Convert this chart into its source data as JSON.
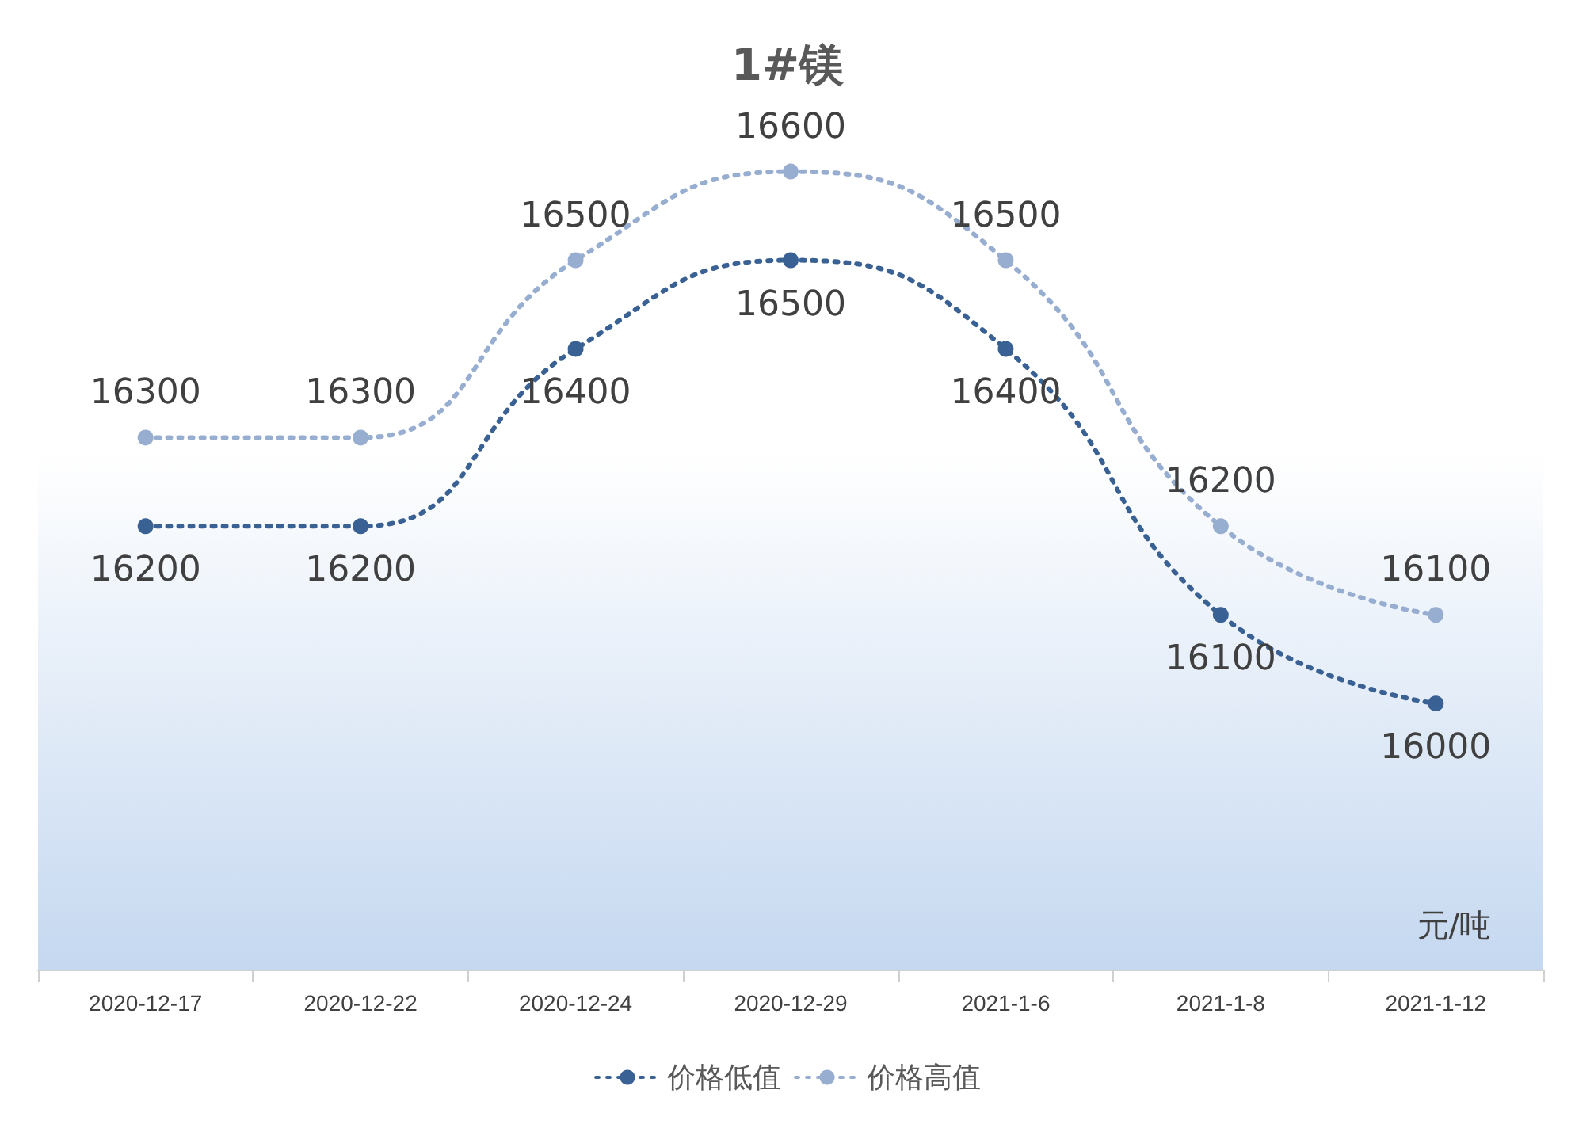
{
  "chart_data": {
    "type": "line",
    "title": "1#镁",
    "categories": [
      "2020-12-17",
      "2020-12-22",
      "2020-12-24",
      "2020-12-29",
      "2021-1-6",
      "2021-1-8",
      "2021-1-12"
    ],
    "series": [
      {
        "name": "价格低值",
        "color": "#3a6193",
        "values": [
          16200,
          16200,
          16400,
          16500,
          16400,
          16100,
          16000
        ]
      },
      {
        "name": "价格高值",
        "color": "#98aed0",
        "values": [
          16300,
          16300,
          16500,
          16600,
          16500,
          16200,
          16100
        ]
      }
    ],
    "annotations": [
      "元/吨"
    ],
    "data_labels": true,
    "legend": "bottom",
    "marker": "circle",
    "line_style": "dotted",
    "grid": false
  }
}
